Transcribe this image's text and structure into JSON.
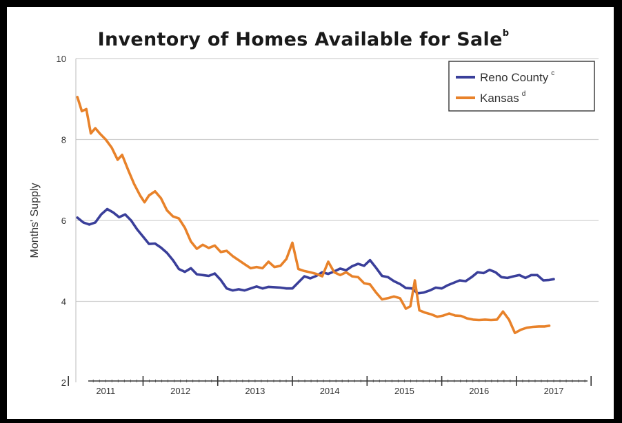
{
  "chart_data": {
    "type": "line",
    "title": "Inventory of Homes Available for Sale",
    "title_superscript": "b",
    "ylabel": "Months' Supply",
    "xlabel": "",
    "ylim": [
      2,
      10
    ],
    "yticks": [
      "2",
      "4",
      "6",
      "8",
      "10"
    ],
    "xlim": [
      2010.6,
      2017.6
    ],
    "xtick_labels": [
      "2011",
      "2012",
      "2013",
      "2014",
      "2015",
      "2016",
      "2017"
    ],
    "grid": "horizontal",
    "legend_position": "top-right",
    "series": [
      {
        "name": "Reno County",
        "superscript": "c",
        "color": "#3a3f9a",
        "points": [
          [
            2010.62,
            6.07
          ],
          [
            2010.7,
            5.95
          ],
          [
            2010.78,
            5.9
          ],
          [
            2010.86,
            5.95
          ],
          [
            2010.94,
            6.15
          ],
          [
            2011.02,
            6.28
          ],
          [
            2011.1,
            6.2
          ],
          [
            2011.18,
            6.08
          ],
          [
            2011.26,
            6.15
          ],
          [
            2011.34,
            6.0
          ],
          [
            2011.42,
            5.78
          ],
          [
            2011.5,
            5.6
          ],
          [
            2011.58,
            5.42
          ],
          [
            2011.66,
            5.43
          ],
          [
            2011.74,
            5.33
          ],
          [
            2011.82,
            5.2
          ],
          [
            2011.9,
            5.02
          ],
          [
            2011.98,
            4.8
          ],
          [
            2012.06,
            4.73
          ],
          [
            2012.14,
            4.82
          ],
          [
            2012.22,
            4.67
          ],
          [
            2012.3,
            4.65
          ],
          [
            2012.38,
            4.63
          ],
          [
            2012.46,
            4.69
          ],
          [
            2012.54,
            4.53
          ],
          [
            2012.62,
            4.32
          ],
          [
            2012.7,
            4.27
          ],
          [
            2012.78,
            4.3
          ],
          [
            2012.86,
            4.27
          ],
          [
            2012.94,
            4.32
          ],
          [
            2013.02,
            4.37
          ],
          [
            2013.1,
            4.32
          ],
          [
            2013.18,
            4.36
          ],
          [
            2013.26,
            4.35
          ],
          [
            2013.34,
            4.34
          ],
          [
            2013.42,
            4.32
          ],
          [
            2013.5,
            4.32
          ],
          [
            2013.58,
            4.47
          ],
          [
            2013.66,
            4.62
          ],
          [
            2013.74,
            4.57
          ],
          [
            2013.82,
            4.63
          ],
          [
            2013.9,
            4.72
          ],
          [
            2013.98,
            4.68
          ],
          [
            2014.06,
            4.74
          ],
          [
            2014.14,
            4.81
          ],
          [
            2014.22,
            4.77
          ],
          [
            2014.3,
            4.87
          ],
          [
            2014.38,
            4.93
          ],
          [
            2014.46,
            4.88
          ],
          [
            2014.54,
            5.02
          ],
          [
            2014.62,
            4.83
          ],
          [
            2014.7,
            4.63
          ],
          [
            2014.78,
            4.6
          ],
          [
            2014.86,
            4.5
          ],
          [
            2014.94,
            4.43
          ],
          [
            2015.02,
            4.33
          ],
          [
            2015.1,
            4.32
          ],
          [
            2015.18,
            4.2
          ],
          [
            2015.26,
            4.22
          ],
          [
            2015.34,
            4.27
          ],
          [
            2015.42,
            4.34
          ],
          [
            2015.5,
            4.32
          ],
          [
            2015.58,
            4.4
          ],
          [
            2015.66,
            4.46
          ],
          [
            2015.74,
            4.52
          ],
          [
            2015.82,
            4.5
          ],
          [
            2015.9,
            4.6
          ],
          [
            2015.98,
            4.72
          ],
          [
            2016.06,
            4.7
          ],
          [
            2016.14,
            4.78
          ],
          [
            2016.22,
            4.72
          ],
          [
            2016.3,
            4.6
          ],
          [
            2016.38,
            4.58
          ],
          [
            2016.46,
            4.62
          ],
          [
            2016.54,
            4.65
          ],
          [
            2016.62,
            4.58
          ],
          [
            2016.7,
            4.65
          ],
          [
            2016.78,
            4.65
          ],
          [
            2016.86,
            4.52
          ],
          [
            2016.94,
            4.53
          ],
          [
            2017.0,
            4.55
          ]
        ]
      },
      {
        "name": "Kansas",
        "superscript": "d",
        "color": "#e8822a",
        "points": [
          [
            2010.62,
            9.05
          ],
          [
            2010.68,
            8.7
          ],
          [
            2010.74,
            8.75
          ],
          [
            2010.8,
            8.15
          ],
          [
            2010.86,
            8.28
          ],
          [
            2010.92,
            8.15
          ],
          [
            2011.0,
            8.0
          ],
          [
            2011.08,
            7.8
          ],
          [
            2011.16,
            7.5
          ],
          [
            2011.22,
            7.62
          ],
          [
            2011.3,
            7.25
          ],
          [
            2011.38,
            6.9
          ],
          [
            2011.46,
            6.62
          ],
          [
            2011.52,
            6.45
          ],
          [
            2011.58,
            6.62
          ],
          [
            2011.66,
            6.72
          ],
          [
            2011.74,
            6.55
          ],
          [
            2011.82,
            6.25
          ],
          [
            2011.9,
            6.1
          ],
          [
            2011.98,
            6.05
          ],
          [
            2012.06,
            5.82
          ],
          [
            2012.14,
            5.48
          ],
          [
            2012.22,
            5.3
          ],
          [
            2012.3,
            5.4
          ],
          [
            2012.38,
            5.32
          ],
          [
            2012.46,
            5.38
          ],
          [
            2012.54,
            5.22
          ],
          [
            2012.62,
            5.25
          ],
          [
            2012.7,
            5.12
          ],
          [
            2012.78,
            5.02
          ],
          [
            2012.86,
            4.92
          ],
          [
            2012.94,
            4.82
          ],
          [
            2013.02,
            4.85
          ],
          [
            2013.1,
            4.82
          ],
          [
            2013.18,
            4.98
          ],
          [
            2013.26,
            4.85
          ],
          [
            2013.34,
            4.88
          ],
          [
            2013.42,
            5.05
          ],
          [
            2013.5,
            5.45
          ],
          [
            2013.58,
            4.8
          ],
          [
            2013.66,
            4.75
          ],
          [
            2013.74,
            4.72
          ],
          [
            2013.82,
            4.68
          ],
          [
            2013.9,
            4.62
          ],
          [
            2013.98,
            4.98
          ],
          [
            2014.06,
            4.72
          ],
          [
            2014.14,
            4.65
          ],
          [
            2014.22,
            4.72
          ],
          [
            2014.3,
            4.62
          ],
          [
            2014.38,
            4.6
          ],
          [
            2014.46,
            4.45
          ],
          [
            2014.54,
            4.42
          ],
          [
            2014.62,
            4.22
          ],
          [
            2014.7,
            4.05
          ],
          [
            2014.78,
            4.08
          ],
          [
            2014.86,
            4.12
          ],
          [
            2014.94,
            4.08
          ],
          [
            2015.02,
            3.82
          ],
          [
            2015.08,
            3.88
          ],
          [
            2015.14,
            4.52
          ],
          [
            2015.2,
            3.78
          ],
          [
            2015.28,
            3.72
          ],
          [
            2015.36,
            3.68
          ],
          [
            2015.44,
            3.62
          ],
          [
            2015.52,
            3.65
          ],
          [
            2015.6,
            3.7
          ],
          [
            2015.68,
            3.65
          ],
          [
            2015.76,
            3.64
          ],
          [
            2015.84,
            3.58
          ],
          [
            2015.92,
            3.55
          ],
          [
            2016.0,
            3.54
          ],
          [
            2016.08,
            3.55
          ],
          [
            2016.16,
            3.54
          ],
          [
            2016.24,
            3.55
          ],
          [
            2016.32,
            3.75
          ],
          [
            2016.4,
            3.55
          ],
          [
            2016.48,
            3.22
          ],
          [
            2016.56,
            3.3
          ],
          [
            2016.64,
            3.35
          ],
          [
            2016.72,
            3.37
          ],
          [
            2016.8,
            3.38
          ],
          [
            2016.88,
            3.38
          ],
          [
            2016.94,
            3.4
          ]
        ]
      }
    ]
  }
}
